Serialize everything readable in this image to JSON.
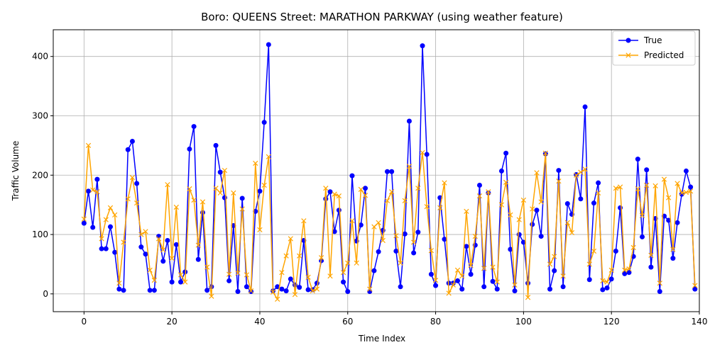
{
  "chart_data": {
    "type": "line",
    "title": "Boro: QUEENS Street: MARATHON PARKWAY (using weather feature)",
    "xlabel": "Time Index",
    "ylabel": "Traffic Volume",
    "xlim": [
      -7,
      140
    ],
    "ylim": [
      -30,
      445
    ],
    "x_ticks": [
      0,
      20,
      40,
      60,
      80,
      100,
      120,
      140
    ],
    "y_ticks": [
      0,
      100,
      200,
      300,
      400
    ],
    "grid": true,
    "legend_position": "upper right",
    "series": [
      {
        "name": "True",
        "color": "#0000ff",
        "marker": "o",
        "values": [
          119,
          173,
          112,
          193,
          76,
          76,
          113,
          70,
          8,
          6,
          243,
          257,
          186,
          79,
          67,
          6,
          6,
          97,
          55,
          90,
          20,
          83,
          20,
          37,
          244,
          282,
          58,
          137,
          6,
          12,
          250,
          205,
          162,
          22,
          115,
          4,
          161,
          12,
          4,
          139,
          173,
          289,
          420,
          5,
          12,
          8,
          5,
          25,
          15,
          11,
          90,
          7,
          7,
          18,
          56,
          160,
          172,
          105,
          141,
          20,
          4,
          199,
          89,
          116,
          178,
          4,
          39,
          71,
          107,
          206,
          206,
          72,
          12,
          101,
          291,
          69,
          104,
          418,
          235,
          33,
          14,
          162,
          92,
          18,
          18,
          22,
          8,
          80,
          33,
          82,
          183,
          12,
          170,
          21,
          8,
          207,
          237,
          75,
          5,
          100,
          87,
          18,
          117,
          141,
          97,
          236,
          8,
          39,
          208,
          12,
          152,
          134,
          201,
          160,
          315,
          24,
          153,
          187,
          7,
          10,
          25,
          72,
          145,
          34,
          36,
          63,
          227,
          96,
          209,
          45,
          127,
          4,
          131,
          124,
          60,
          120,
          168,
          207,
          180,
          8
        ]
      },
      {
        "name": "Predicted",
        "color": "#ffa500",
        "marker": "x",
        "values": [
          126,
          250,
          175,
          172,
          93,
          125,
          145,
          133,
          18,
          87,
          160,
          196,
          153,
          100,
          105,
          40,
          23,
          93,
          74,
          184,
          60,
          146,
          32,
          20,
          177,
          158,
          82,
          155,
          45,
          -4,
          178,
          170,
          208,
          33,
          170,
          35,
          143,
          32,
          5,
          220,
          108,
          183,
          231,
          3,
          -9,
          36,
          64,
          93,
          -1,
          64,
          123,
          28,
          5,
          8,
          61,
          178,
          30,
          168,
          165,
          36,
          52,
          123,
          52,
          176,
          166,
          8,
          113,
          120,
          90,
          157,
          172,
          98,
          52,
          157,
          215,
          87,
          178,
          238,
          147,
          73,
          23,
          145,
          187,
          1,
          15,
          40,
          30,
          139,
          48,
          97,
          165,
          43,
          172,
          45,
          20,
          150,
          188,
          133,
          15,
          125,
          158,
          -6,
          143,
          204,
          155,
          237,
          50,
          63,
          190,
          30,
          120,
          103,
          200,
          205,
          210,
          50,
          72,
          170,
          22,
          20,
          40,
          178,
          180,
          40,
          42,
          78,
          177,
          132,
          183,
          65,
          182,
          18,
          193,
          162,
          75,
          186,
          170,
          171,
          173,
          14
        ]
      }
    ]
  }
}
